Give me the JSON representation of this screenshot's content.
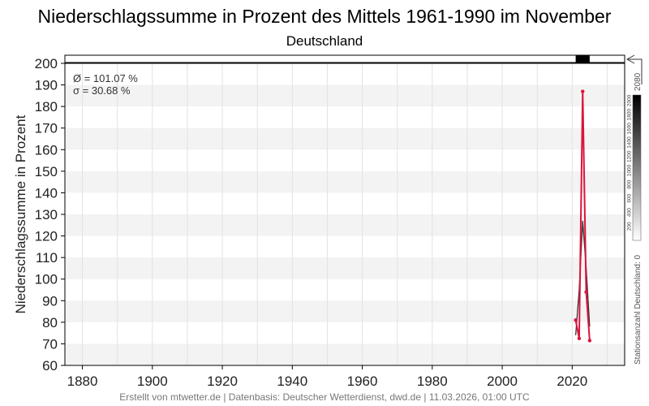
{
  "chart_data": {
    "type": "line",
    "title": "Niederschlagssumme in Prozent des Mittels 1961-1990 im November",
    "subtitle": "Deutschland",
    "ylabel": "Niederschlagssumme in Prozent",
    "xlim": [
      1875,
      2035
    ],
    "ylim": [
      60,
      200
    ],
    "x_ticks": [
      1880,
      1900,
      1920,
      1940,
      1960,
      1980,
      2000,
      2020
    ],
    "y_ticks": [
      60,
      70,
      80,
      90,
      100,
      110,
      120,
      130,
      140,
      150,
      160,
      170,
      180,
      190,
      200
    ],
    "grid": true,
    "series": [
      {
        "role": "annual-values",
        "color": "#dc143c",
        "x": [
          2021,
          2022,
          2023,
          2024,
          2025
        ],
        "values": [
          81,
          72.5,
          187,
          94,
          71.5
        ]
      },
      {
        "role": "smoothed",
        "color": "#333333",
        "x": [
          2021,
          2022,
          2023,
          2024,
          2025
        ],
        "values": [
          74,
          95,
          127,
          105,
          78
        ]
      }
    ],
    "station_bar": {
      "x_start": 2021,
      "x_end": 2025,
      "color": "#000000"
    },
    "stats": {
      "mean_label": "Ø = 101.07 %",
      "sigma_label": "σ = 30.68 %"
    },
    "colorbar": {
      "label": "Stationsanzahl Deutschland: 0",
      "top_label": "2080",
      "ticks": [
        "200",
        "400",
        "600",
        "800",
        "1000",
        "1200",
        "1400",
        "1600",
        "1800",
        "2000"
      ]
    },
    "footer": "Erstellt von mtwetter.de | Datenbasis: Deutscher Wetterdienst, dwd.de | 11.03.2026, 01:00 UTC"
  }
}
